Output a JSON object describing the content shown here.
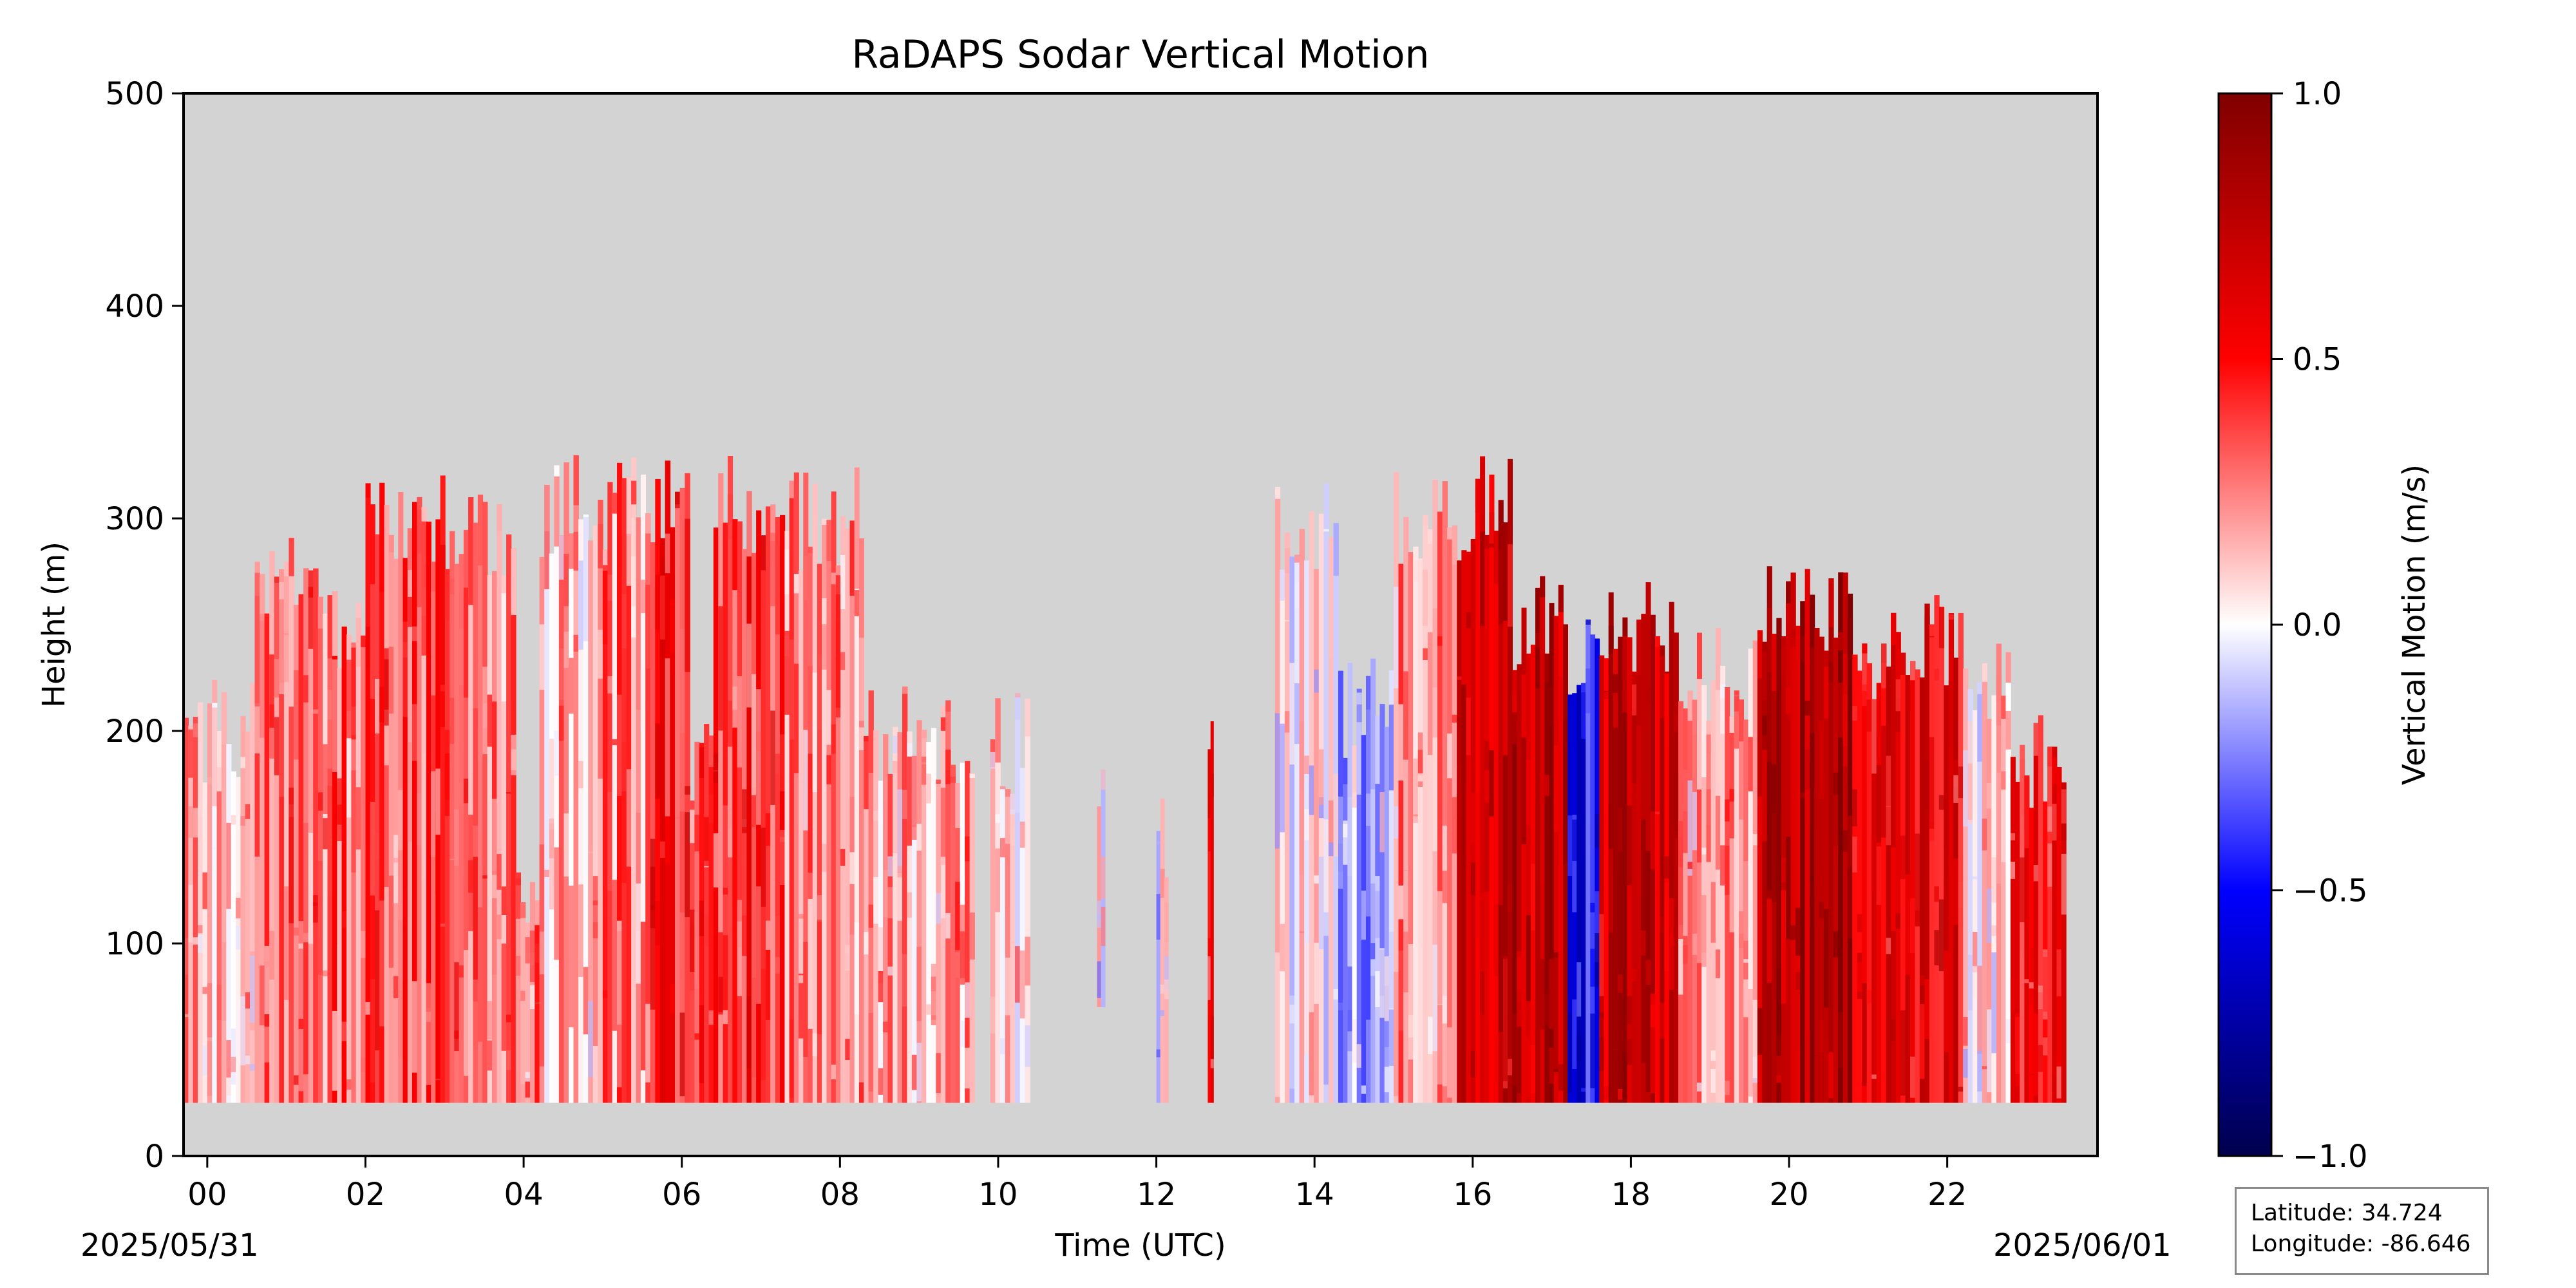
{
  "chart_data": {
    "type": "heatmap",
    "title": "RaDAPS Sodar Vertical Motion",
    "xlabel": "Time (UTC)",
    "ylabel": "Height (m)",
    "xlim": [
      -0.3,
      23.9
    ],
    "ylim": [
      0,
      500
    ],
    "x_ticks": [
      "00",
      "02",
      "04",
      "06",
      "08",
      "10",
      "12",
      "14",
      "16",
      "18",
      "20",
      "22"
    ],
    "y_ticks": [
      "0",
      "100",
      "200",
      "300",
      "400",
      "500"
    ],
    "start_date": "2025/05/31",
    "end_date": "2025/06/01",
    "no_data_color": "#d3d3d3",
    "colorbar": {
      "label": "Vertical Motion (m/s)",
      "range": [
        -1.0,
        1.0
      ],
      "ticks": [
        "−1.0",
        "−0.5",
        "0.0",
        "0.5",
        "1.0"
      ],
      "colormap": "seismic",
      "stops": [
        "#00004c",
        "#0000ff",
        "#ffffff",
        "#ff0000",
        "#800000"
      ]
    },
    "data_base_height": 25,
    "segments": [
      {
        "t0": -0.3,
        "t1": 0.6,
        "top": 200,
        "mean": 0.15
      },
      {
        "t0": 0.6,
        "t1": 1.4,
        "top": 270,
        "mean": 0.3
      },
      {
        "t0": 1.4,
        "t1": 2.0,
        "top": 250,
        "mean": 0.3
      },
      {
        "t0": 2.0,
        "t1": 3.3,
        "top": 300,
        "mean": 0.35
      },
      {
        "t0": 3.3,
        "t1": 3.9,
        "top": 290,
        "mean": 0.3
      },
      {
        "t0": 3.9,
        "t1": 4.2,
        "top": 110,
        "mean": 0.25
      },
      {
        "t0": 4.2,
        "t1": 5.0,
        "top": 305,
        "mean": 0.15
      },
      {
        "t0": 5.0,
        "t1": 5.6,
        "top": 305,
        "mean": 0.25
      },
      {
        "t0": 5.6,
        "t1": 6.1,
        "top": 305,
        "mean": 0.45
      },
      {
        "t0": 6.1,
        "t1": 6.4,
        "top": 180,
        "mean": 0.35
      },
      {
        "t0": 6.4,
        "t1": 7.3,
        "top": 305,
        "mean": 0.4
      },
      {
        "t0": 7.3,
        "t1": 8.3,
        "top": 300,
        "mean": 0.25
      },
      {
        "t0": 8.3,
        "t1": 9.7,
        "top": 200,
        "mean": 0.2
      },
      {
        "t0": 9.9,
        "t1": 10.4,
        "top": 195,
        "mean": 0.1
      },
      {
        "t0": 11.25,
        "t1": 11.35,
        "top": 160,
        "mean": 0.0,
        "bottom": 70
      },
      {
        "t0": 12.0,
        "t1": 12.15,
        "top": 145,
        "mean": -0.05
      },
      {
        "t0": 12.65,
        "t1": 12.72,
        "top": 180,
        "mean": 0.5
      },
      {
        "t0": 13.5,
        "t1": 14.3,
        "top": 300,
        "mean": 0.05
      },
      {
        "t0": 14.3,
        "t1": 15.0,
        "top": 210,
        "mean": -0.15
      },
      {
        "t0": 15.0,
        "t1": 15.8,
        "top": 300,
        "mean": 0.2
      },
      {
        "t0": 15.8,
        "t1": 16.5,
        "top": 305,
        "mean": 0.7
      },
      {
        "t0": 16.5,
        "t1": 17.2,
        "top": 250,
        "mean": 0.75
      },
      {
        "t0": 17.2,
        "t1": 17.6,
        "top": 235,
        "mean": -0.5
      },
      {
        "t0": 17.6,
        "t1": 18.6,
        "top": 250,
        "mean": 0.7
      },
      {
        "t0": 18.6,
        "t1": 19.6,
        "top": 225,
        "mean": 0.2
      },
      {
        "t0": 19.6,
        "t1": 20.8,
        "top": 255,
        "mean": 0.8
      },
      {
        "t0": 20.8,
        "t1": 22.2,
        "top": 240,
        "mean": 0.55
      },
      {
        "t0": 22.2,
        "t1": 22.8,
        "top": 230,
        "mean": 0.1
      },
      {
        "t0": 22.8,
        "t1": 23.5,
        "top": 185,
        "mean": 0.45
      }
    ]
  },
  "location": {
    "latitude": "Latitude: 34.724",
    "longitude": "Longitude: -86.646"
  }
}
